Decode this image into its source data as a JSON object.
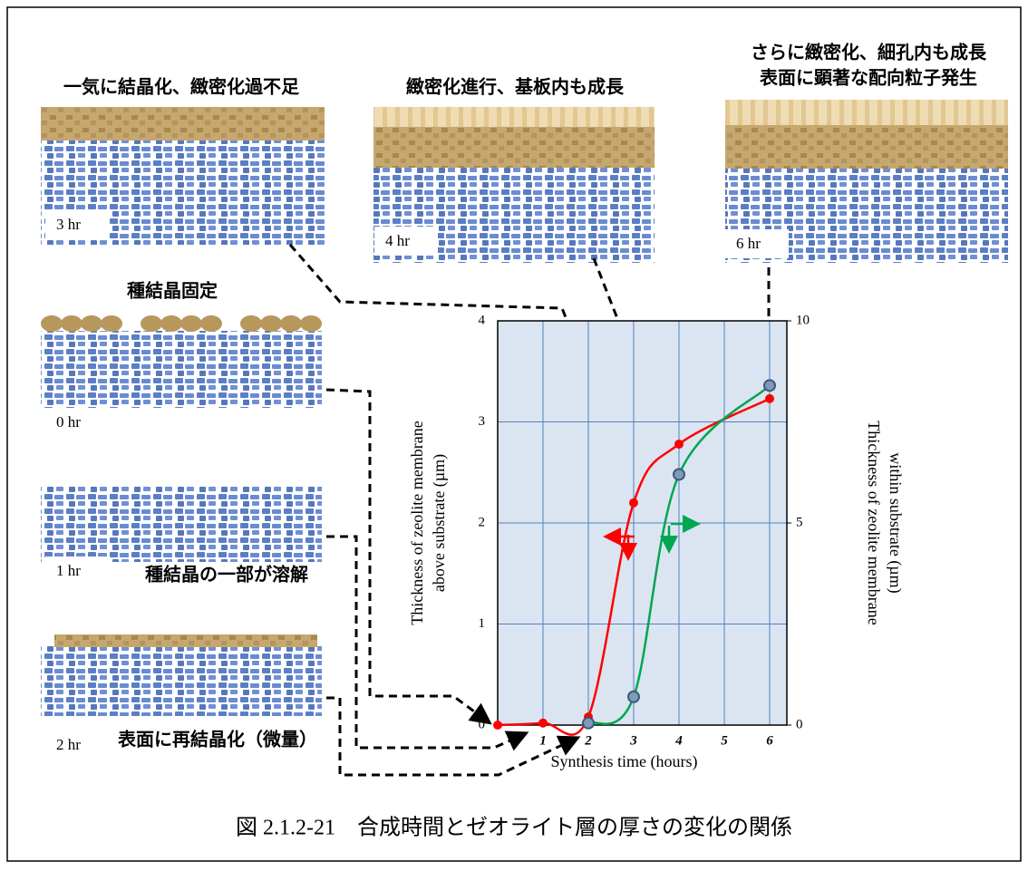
{
  "chart_data": {
    "type": "line",
    "xlabel": "Synthesis time (hours)",
    "ylabel": [
      "Thickness of zeolite membrane",
      "above substrate (µm)"
    ],
    "y2label": [
      "Thickness of zeolite membrane",
      "within substrate (µm)"
    ],
    "xlim": [
      0,
      6.38
    ],
    "xticks": [
      1,
      2,
      3,
      4,
      5,
      6
    ],
    "ylim": [
      0,
      4
    ],
    "yticks": [
      0,
      1,
      2,
      3,
      4
    ],
    "y2lim": [
      0,
      10
    ],
    "y2ticks": [
      0,
      5,
      10
    ],
    "grid": true,
    "series": [
      {
        "color": "#ff0000",
        "x": [
          0,
          1,
          2,
          3,
          4,
          6
        ],
        "values": [
          0,
          0.02,
          0.08,
          2.2,
          2.78,
          3.23
        ]
      },
      {
        "color": "#00a651",
        "axis": "y2",
        "x": [
          2,
          3,
          4,
          6
        ],
        "values": [
          0.05,
          0.7,
          6.2,
          8.4
        ]
      }
    ]
  },
  "panels": [
    {
      "caption": [
        "一気に結晶化、緻密化過不足"
      ],
      "label": "3 hr"
    },
    {
      "caption": [
        "緻密化進行、基板内も成長"
      ],
      "label": "4 hr"
    },
    {
      "caption": [
        "さらに緻密化、細孔内も成長",
        "表面に顕著な配向粒子発生"
      ],
      "label": "6 hr"
    },
    {
      "caption": [
        "種結晶固定"
      ],
      "label": "0 hr"
    },
    {
      "caption": [
        "種結晶の一部が溶解"
      ],
      "label": "1 hr"
    },
    {
      "caption": [
        "表面に再結晶化（微量）"
      ],
      "label": "2 hr"
    }
  ],
  "figure_caption": "図 2.1.2-21　合成時間とゼオライト層の厚さの変化の関係"
}
